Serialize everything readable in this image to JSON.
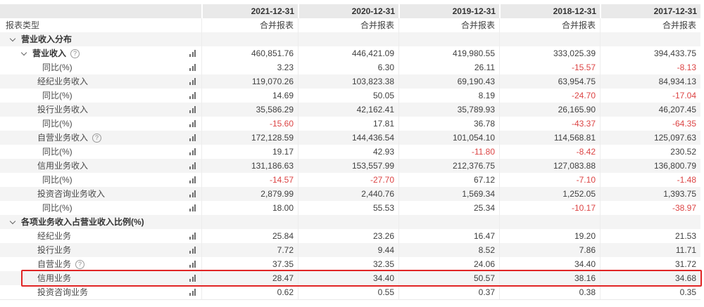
{
  "table": {
    "columns": [
      "2021-12-31",
      "2020-12-31",
      "2019-12-31",
      "2018-12-31",
      "2017-12-31"
    ],
    "rows": [
      {
        "label": "报表类型",
        "type": "plain",
        "icon": false,
        "shade": false,
        "values": [
          "合并报表",
          "合并报表",
          "合并报表",
          "合并报表",
          "合并报表"
        ]
      },
      {
        "label": "营业收入分布",
        "type": "group",
        "chevron": true,
        "bold": true,
        "icon": false,
        "shade": true,
        "values": []
      },
      {
        "label": "营业收入",
        "type": "subgroup",
        "chevron": true,
        "bold": true,
        "help": true,
        "icon": true,
        "shade": false,
        "values": [
          "460,851.76",
          "446,421.09",
          "419,980.55",
          "333,025.39",
          "394,433.75"
        ]
      },
      {
        "label": "同比(%)",
        "type": "leaf",
        "icon": true,
        "shade": false,
        "values": [
          "3.23",
          "6.30",
          "26.11",
          "-15.57",
          "-8.13"
        ]
      },
      {
        "label": "经纪业务收入",
        "type": "item",
        "icon": true,
        "shade": true,
        "values": [
          "119,070.26",
          "103,823.38",
          "69,190.43",
          "63,954.75",
          "84,934.13"
        ]
      },
      {
        "label": "同比(%)",
        "type": "leaf",
        "icon": true,
        "shade": false,
        "values": [
          "14.69",
          "50.05",
          "8.19",
          "-24.70",
          "-17.04"
        ]
      },
      {
        "label": "投行业务收入",
        "type": "item",
        "icon": true,
        "shade": true,
        "values": [
          "35,586.29",
          "42,162.41",
          "35,789.93",
          "26,165.90",
          "46,207.45"
        ]
      },
      {
        "label": "同比(%)",
        "type": "leaf",
        "icon": true,
        "shade": false,
        "values": [
          "-15.60",
          "17.81",
          "36.78",
          "-43.37",
          "-64.35"
        ]
      },
      {
        "label": "自营业务收入",
        "type": "item",
        "help": true,
        "icon": true,
        "shade": true,
        "values": [
          "172,128.59",
          "144,436.54",
          "101,054.10",
          "114,568.81",
          "125,097.63"
        ]
      },
      {
        "label": "同比(%)",
        "type": "leaf",
        "icon": true,
        "shade": false,
        "values": [
          "19.17",
          "42.93",
          "-11.80",
          "-8.42",
          "230.52"
        ]
      },
      {
        "label": "信用业务收入",
        "type": "item",
        "icon": true,
        "shade": true,
        "values": [
          "131,186.63",
          "153,557.99",
          "212,376.75",
          "127,083.88",
          "136,800.79"
        ]
      },
      {
        "label": "同比(%)",
        "type": "leaf",
        "icon": true,
        "shade": false,
        "values": [
          "-14.57",
          "-27.70",
          "67.12",
          "-7.10",
          "-1.48"
        ]
      },
      {
        "label": "投资咨询业务收入",
        "type": "item",
        "icon": true,
        "shade": true,
        "values": [
          "2,879.99",
          "2,440.76",
          "1,569.34",
          "1,252.05",
          "1,393.75"
        ]
      },
      {
        "label": "同比(%)",
        "type": "leaf",
        "icon": true,
        "shade": false,
        "values": [
          "18.00",
          "55.53",
          "25.34",
          "-10.17",
          "-38.97"
        ]
      },
      {
        "label": "各项业务收入占营业收入比例(%)",
        "type": "group",
        "chevron": true,
        "bold": true,
        "icon": false,
        "shade": true,
        "values": []
      },
      {
        "label": "经纪业务",
        "type": "item",
        "icon": true,
        "shade": false,
        "values": [
          "25.84",
          "23.26",
          "16.47",
          "19.20",
          "21.53"
        ]
      },
      {
        "label": "投行业务",
        "type": "item",
        "icon": true,
        "shade": true,
        "values": [
          "7.72",
          "9.44",
          "8.52",
          "7.86",
          "11.71"
        ]
      },
      {
        "label": "自营业务",
        "type": "item",
        "help": true,
        "icon": true,
        "shade": false,
        "values": [
          "37.35",
          "32.35",
          "24.06",
          "34.40",
          "31.72"
        ]
      },
      {
        "label": "信用业务",
        "type": "item",
        "icon": true,
        "shade": true,
        "highlighted": true,
        "values": [
          "28.47",
          "34.40",
          "50.57",
          "38.16",
          "34.68"
        ]
      },
      {
        "label": "投资咨询业务",
        "type": "item",
        "icon": true,
        "shade": false,
        "values": [
          "0.62",
          "0.55",
          "0.37",
          "0.38",
          "0.35"
        ]
      }
    ]
  },
  "icons": {
    "chevron": "chevron-down-icon",
    "help": "question-circle-icon",
    "bars": "bar-chart-icon"
  },
  "colors": {
    "header_bg": "#e9e9e9",
    "stripe_bg": "#f4f4f4",
    "negative_text": "#dc4444",
    "highlight_border": "#e12525",
    "text": "#404040"
  },
  "highlight": {
    "row_label": "信用业务"
  }
}
